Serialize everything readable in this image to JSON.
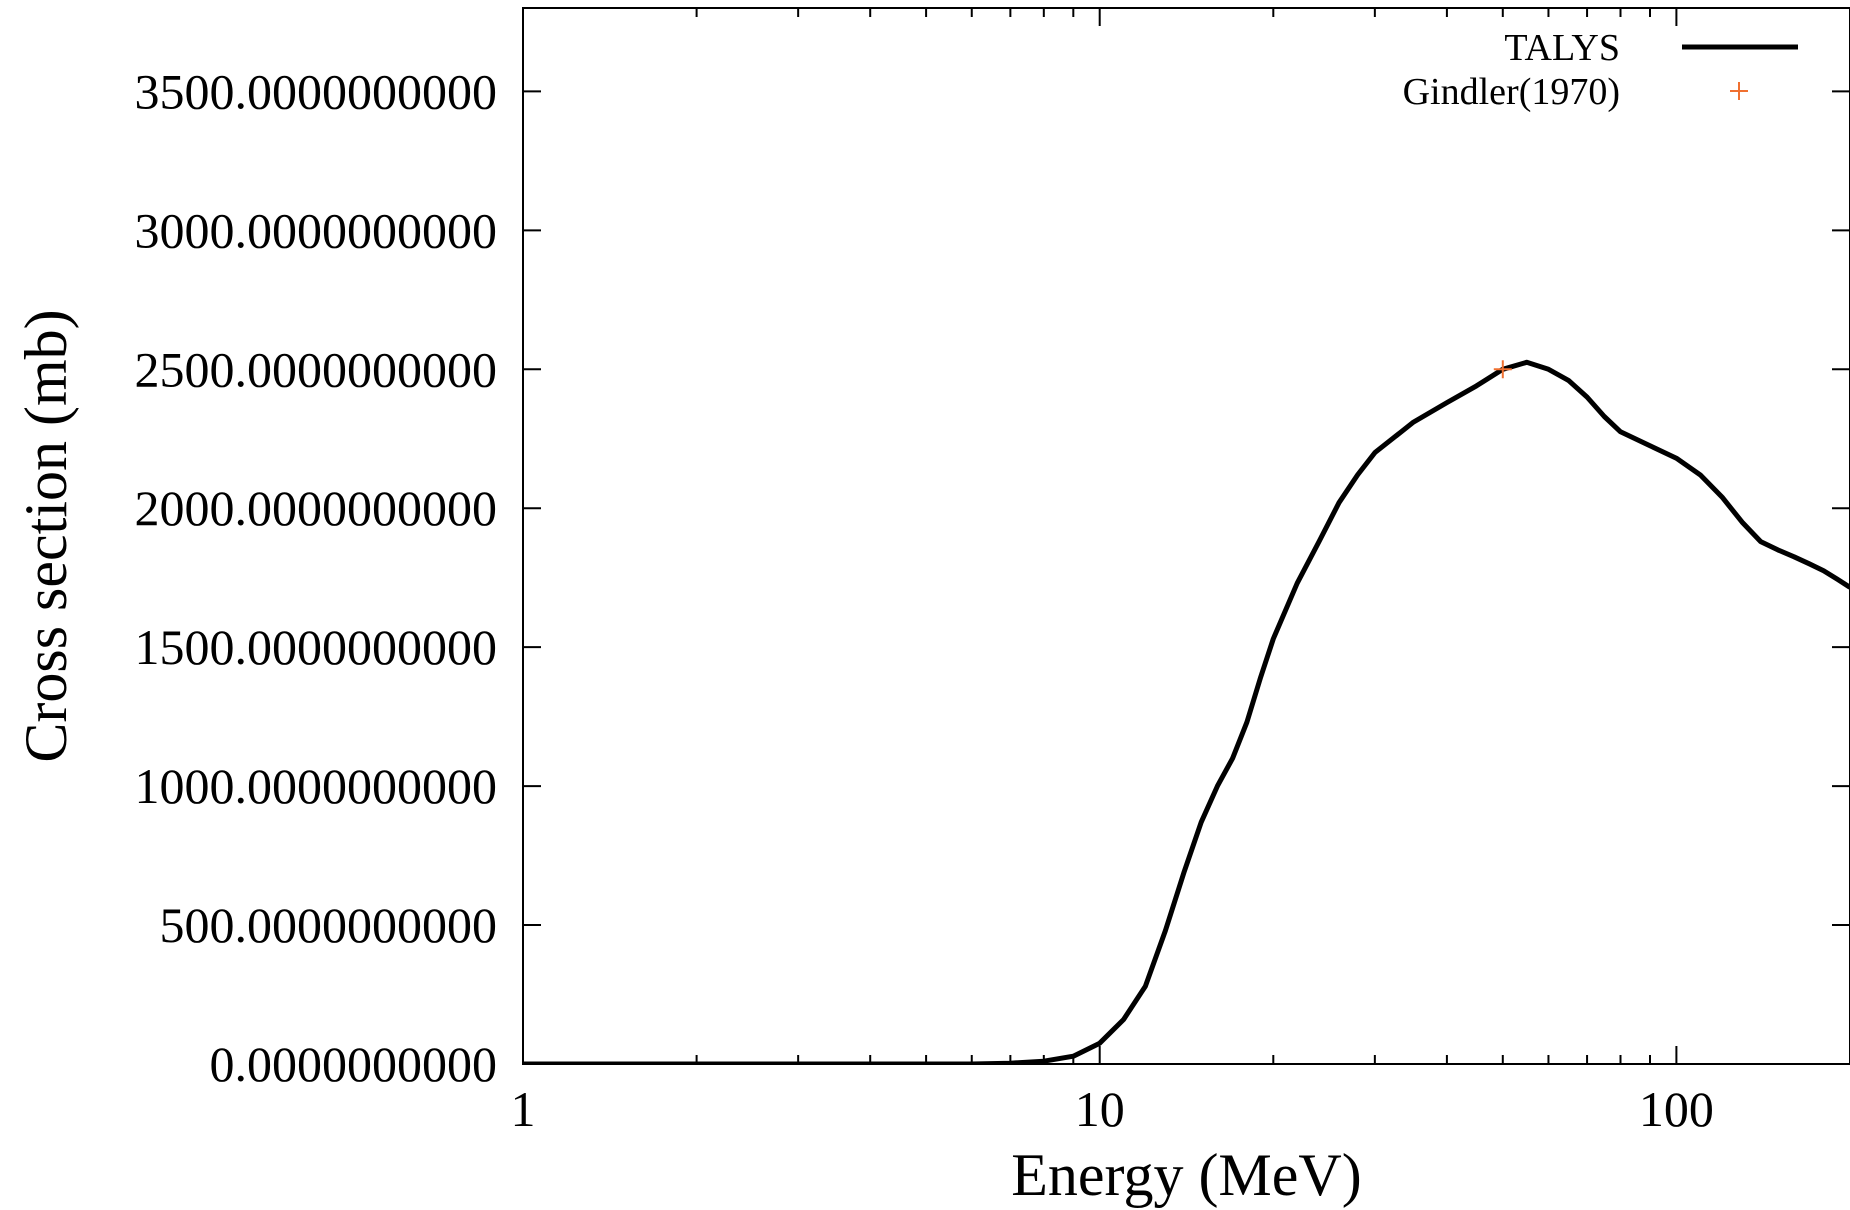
{
  "chart_data": {
    "type": "line",
    "title": "",
    "xlabel": "Energy (MeV)",
    "ylabel": "Cross section (mb)",
    "xscale": "log",
    "xlim": [
      1,
      200
    ],
    "ylim": [
      0,
      3800
    ],
    "x_ticks": [
      {
        "value": 1,
        "label": "1"
      },
      {
        "value": 10,
        "label": "10"
      },
      {
        "value": 100,
        "label": "100"
      }
    ],
    "y_ticks": [
      {
        "value": 0,
        "label": "0.0000000000"
      },
      {
        "value": 500,
        "label": "500.0000000000"
      },
      {
        "value": 1000,
        "label": "1000.0000000000"
      },
      {
        "value": 1500,
        "label": "1500.0000000000"
      },
      {
        "value": 2000,
        "label": "2000.0000000000"
      },
      {
        "value": 2500,
        "label": "2500.0000000000"
      },
      {
        "value": 3000,
        "label": "3000.0000000000"
      },
      {
        "value": 3500,
        "label": "3500.0000000000"
      }
    ],
    "grid": false,
    "legend_position": "top-right",
    "series": [
      {
        "name": "TALYS",
        "style": "line",
        "color": "#000000",
        "x": [
          1,
          2,
          3,
          4,
          5,
          6,
          7,
          8,
          9,
          10,
          11,
          12,
          13,
          14,
          15,
          16,
          17,
          18,
          19,
          20,
          22,
          24,
          26,
          28,
          30,
          35,
          40,
          45,
          50,
          55,
          60,
          65,
          70,
          75,
          80,
          90,
          100,
          110,
          120,
          130,
          140,
          150,
          160,
          170,
          180,
          190,
          200
        ],
        "y": [
          0,
          0,
          0,
          0,
          0,
          0,
          3,
          10,
          28,
          75,
          160,
          280,
          480,
          690,
          870,
          1000,
          1100,
          1230,
          1390,
          1530,
          1730,
          1880,
          2020,
          2120,
          2200,
          2310,
          2380,
          2440,
          2500,
          2525,
          2500,
          2460,
          2400,
          2330,
          2275,
          2225,
          2180,
          2120,
          2040,
          1950,
          1880,
          1850,
          1825,
          1800,
          1775,
          1745,
          1715
        ]
      },
      {
        "name": "Gindler(1970)",
        "style": "marker",
        "marker": "plus",
        "color": "#f07030",
        "x": [
          50
        ],
        "y": [
          2500
        ]
      }
    ]
  }
}
